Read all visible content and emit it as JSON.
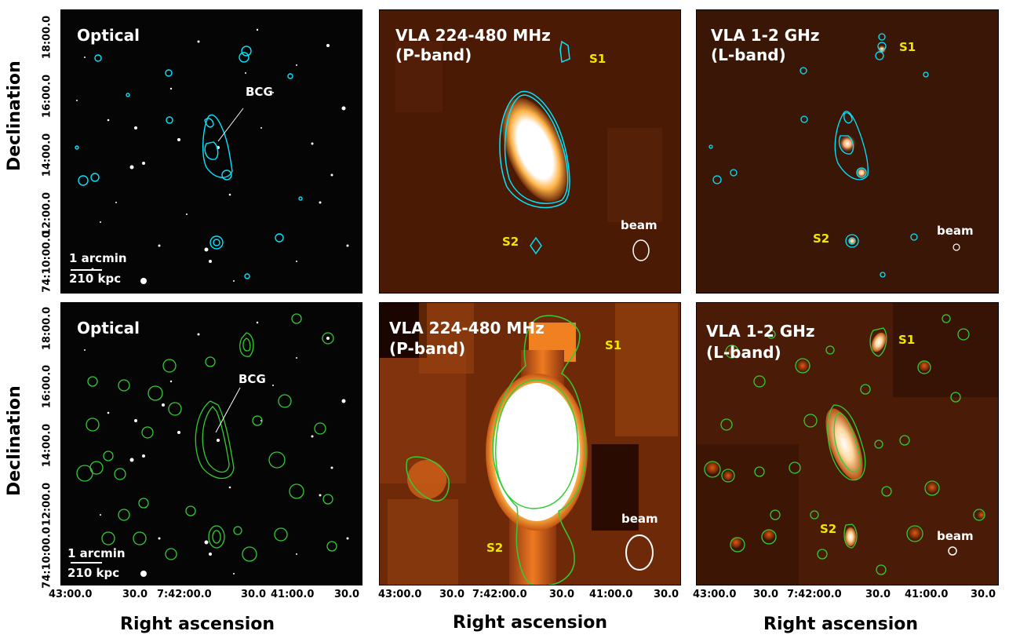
{
  "figure": {
    "y_axis_label": "Declination",
    "x_axis_label": "Right ascension",
    "x_ticks": [
      "43:00.0",
      "30.0",
      "7:42:00.0",
      "30.0",
      "41:00.0",
      "30.0"
    ],
    "y_ticks": [
      "74:10:00.0",
      "12:00.0",
      "14:00.0",
      "16:00.0",
      "18:00.0"
    ],
    "contour_colors": {
      "top_row": "#00e5ff",
      "bottom_row": "#33cc33"
    }
  },
  "panels": {
    "optical_top": {
      "title": "Optical",
      "bcg_label": "BCG",
      "scalebar_1": "1 arcmin",
      "scalebar_2": "210 kpc"
    },
    "pband_top": {
      "title_1": "VLA 224-480 MHz",
      "title_2": "(P-band)",
      "s1": "S1",
      "s2": "S2",
      "beam": "beam"
    },
    "lband_top": {
      "title_1": "VLA 1-2 GHz",
      "title_2": "(L-band)",
      "s1": "S1",
      "s2": "S2",
      "beam": "beam"
    },
    "optical_bottom": {
      "title": "Optical",
      "bcg_label": "BCG",
      "scalebar_1": "1 arcmin",
      "scalebar_2": "210 kpc"
    },
    "pband_bottom": {
      "title_1": "VLA 224-480 MHz",
      "title_2": "(P-band)",
      "s1": "S1",
      "s2": "S2",
      "beam": "beam"
    },
    "lband_bottom": {
      "title_1": "VLA 1-2 GHz",
      "title_2": "(L-band)",
      "s1": "S1",
      "s2": "S2",
      "beam": "beam"
    }
  }
}
